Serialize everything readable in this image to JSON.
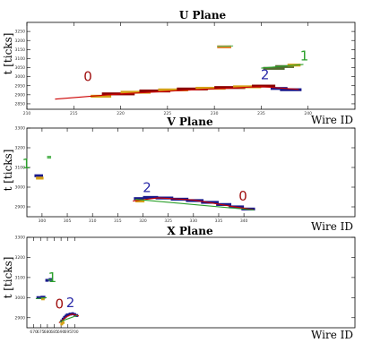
{
  "chart_data": [
    {
      "type": "scatter",
      "title": "U Plane",
      "xlabel": "Wire ID",
      "ylabel": "t [ticks]",
      "xlim": [
        210,
        245
      ],
      "ylim": [
        2820,
        3300
      ],
      "xticks": [
        210,
        215,
        220,
        225,
        230,
        235,
        240
      ],
      "yticks": [
        2850,
        2900,
        2950,
        3000,
        3050,
        3100,
        3150,
        3200,
        3250
      ],
      "grid": false,
      "hits": [
        {
          "x1": 216.8,
          "x2": 219.0,
          "y": 2892,
          "color": "#d4a017"
        },
        {
          "x1": 218.0,
          "x2": 221.5,
          "y": 2905,
          "color": "#8b0000"
        },
        {
          "x1": 220.0,
          "x2": 223.2,
          "y": 2914,
          "color": "#d4a017"
        },
        {
          "x1": 222.0,
          "x2": 225.3,
          "y": 2921,
          "color": "#8b0000"
        },
        {
          "x1": 224.0,
          "x2": 227.2,
          "y": 2927,
          "color": "#d4a017"
        },
        {
          "x1": 226.0,
          "x2": 229.3,
          "y": 2932,
          "color": "#8b0000"
        },
        {
          "x1": 228.0,
          "x2": 231.2,
          "y": 2936,
          "color": "#d4a017"
        },
        {
          "x1": 230.0,
          "x2": 233.3,
          "y": 2940,
          "color": "#8b0000"
        },
        {
          "x1": 232.0,
          "x2": 235.0,
          "y": 2944,
          "color": "#d4a017"
        },
        {
          "x1": 234.0,
          "x2": 236.5,
          "y": 2948,
          "color": "#8b0000"
        },
        {
          "x1": 236.0,
          "x2": 237.8,
          "y": 2935,
          "color": "#1a1a8c"
        },
        {
          "x1": 237.0,
          "x2": 239.3,
          "y": 2928,
          "color": "#1a1a8c"
        },
        {
          "x1": 235.2,
          "x2": 237.5,
          "y": 3046,
          "color": "#556b2f"
        },
        {
          "x1": 236.5,
          "x2": 238.5,
          "y": 3056,
          "color": "#556b2f"
        },
        {
          "x1": 237.8,
          "x2": 239.2,
          "y": 3064,
          "color": "#d4a017"
        },
        {
          "x1": 230.3,
          "x2": 231.8,
          "y": 3165,
          "color": "#e07b20"
        }
      ],
      "tracks": [
        {
          "points": [
            [
              213,
              2876
            ],
            [
              220,
              2905
            ],
            [
              228,
              2928
            ],
            [
              235,
              2945
            ],
            [
              239,
              2930
            ]
          ],
          "color": "#cc0000"
        },
        {
          "points": [
            [
              230.3,
              3168
            ],
            [
              232.0,
              3170
            ]
          ],
          "color": "#5cb85c"
        },
        {
          "points": [
            [
              235.0,
              3047
            ],
            [
              239.5,
              3068
            ]
          ],
          "color": "#2ca02c"
        }
      ],
      "labels": [
        {
          "text": "0",
          "x": 216.5,
          "y": 2975,
          "color": "#a01010"
        },
        {
          "text": "2",
          "x": 235.4,
          "y": 2985,
          "color": "#2a2aa8"
        },
        {
          "text": "1",
          "x": 239.6,
          "y": 3090,
          "color": "#2ca02c"
        }
      ]
    },
    {
      "type": "scatter",
      "title": "V Plane",
      "xlabel": "Wire ID",
      "ylabel": "t [ticks]",
      "xlim": [
        297,
        362
      ],
      "ylim": [
        2850,
        3300
      ],
      "xticks": [
        300,
        305,
        310,
        315,
        320,
        325,
        330,
        335,
        340
      ],
      "yticks": [
        2900,
        3000,
        3100,
        3200,
        3300
      ],
      "grid": false,
      "hits": [
        {
          "x1": 298.5,
          "x2": 300.2,
          "y": 3058,
          "color": "#1a1a8c"
        },
        {
          "x1": 298.8,
          "x2": 300.3,
          "y": 3046,
          "color": "#d4a017"
        },
        {
          "x1": 318.2,
          "x2": 320.2,
          "y": 2942,
          "color": "#1a1a8c"
        },
        {
          "x1": 320.0,
          "x2": 323.0,
          "y": 2948,
          "color": "#1a1a8c"
        },
        {
          "x1": 322.5,
          "x2": 326.0,
          "y": 2945,
          "color": "#1a1a8c"
        },
        {
          "x1": 325.5,
          "x2": 329.0,
          "y": 2939,
          "color": "#1a1a8c"
        },
        {
          "x1": 328.5,
          "x2": 332.0,
          "y": 2932,
          "color": "#1a1a8c"
        },
        {
          "x1": 331.5,
          "x2": 335.0,
          "y": 2923,
          "color": "#1a1a8c"
        },
        {
          "x1": 334.5,
          "x2": 337.5,
          "y": 2912,
          "color": "#1a1a8c"
        },
        {
          "x1": 337.0,
          "x2": 340.0,
          "y": 2900,
          "color": "#1a1a8c"
        },
        {
          "x1": 339.5,
          "x2": 342.2,
          "y": 2889,
          "color": "#1a1a8c"
        },
        {
          "x1": 318.5,
          "x2": 320.3,
          "y": 2930,
          "color": "#d4a017"
        },
        {
          "x1": 301.0,
          "x2": 301.8,
          "y": 3152,
          "color": "#5cb85c"
        }
      ],
      "tracks": [
        {
          "points": [
            [
              318,
              2930
            ],
            [
              323,
              2946
            ],
            [
              330,
              2935
            ],
            [
              337,
              2905
            ],
            [
              342,
              2885
            ]
          ],
          "color": "#cc0000"
        },
        {
          "points": [
            [
              318.5,
              2938
            ],
            [
              342,
              2884
            ]
          ],
          "color": "#2ca02c"
        }
      ],
      "labels": [
        {
          "text": "1",
          "x": 296.9,
          "y": 3095,
          "color": "#2ca02c"
        },
        {
          "text": "2",
          "x": 320.8,
          "y": 2975,
          "color": "#2a2aa8"
        },
        {
          "text": "0",
          "x": 339.8,
          "y": 2932,
          "color": "#a01010"
        }
      ]
    },
    {
      "type": "scatter",
      "title": "X Plane",
      "xlabel": "Wire ID",
      "ylabel": "t [ticks]",
      "xlim": [
        665,
        905
      ],
      "ylim": [
        2850,
        3300
      ],
      "xticks": [
        670,
        675,
        680,
        685,
        690,
        695,
        700
      ],
      "yticks": [
        2900,
        3000,
        3100,
        3200,
        3300
      ],
      "grid": false,
      "hits": [
        {
          "x1": 672.0,
          "x2": 675.5,
          "y": 3000,
          "color": "#1a1a8c"
        },
        {
          "x1": 675.0,
          "x2": 678.5,
          "y": 3002,
          "color": "#1a1a8c"
        },
        {
          "x1": 678.5,
          "x2": 681.0,
          "y": 3086,
          "color": "#1a1a8c"
        },
        {
          "x1": 681.0,
          "x2": 683.5,
          "y": 3090,
          "color": "#1a1a8c"
        },
        {
          "x1": 675.5,
          "x2": 678.0,
          "y": 2994,
          "color": "#d4a017"
        },
        {
          "x1": 689.5,
          "x2": 691.5,
          "y": 2884,
          "color": "#1a1a8c"
        },
        {
          "x1": 690.5,
          "x2": 692.5,
          "y": 2893,
          "color": "#1a1a8c"
        },
        {
          "x1": 691.5,
          "x2": 693.5,
          "y": 2902,
          "color": "#1a1a8c"
        },
        {
          "x1": 692.5,
          "x2": 694.5,
          "y": 2908,
          "color": "#1a1a8c"
        },
        {
          "x1": 693.5,
          "x2": 696.0,
          "y": 2914,
          "color": "#1a1a8c"
        },
        {
          "x1": 695.5,
          "x2": 698.0,
          "y": 2918,
          "color": "#1a1a8c"
        },
        {
          "x1": 697.5,
          "x2": 699.5,
          "y": 2920,
          "color": "#1a1a8c"
        },
        {
          "x1": 699.0,
          "x2": 701.0,
          "y": 2916,
          "color": "#1a1a8c"
        },
        {
          "x1": 700.5,
          "x2": 702.5,
          "y": 2911,
          "color": "#1a1a8c"
        },
        {
          "x1": 689.5,
          "x2": 691.5,
          "y": 2869,
          "color": "#d4a017"
        },
        {
          "x1": 690.5,
          "x2": 692.5,
          "y": 2876,
          "color": "#d4a017"
        }
      ],
      "tracks": [
        {
          "points": [
            [
              671.5,
              2995
            ],
            [
              679.5,
              3000
            ]
          ],
          "color": "#2ca02c"
        },
        {
          "points": [
            [
              680.5,
              3088
            ],
            [
              683.5,
              3090
            ]
          ],
          "color": "#2ca02c"
        },
        {
          "points": [
            [
              688.5,
              2875
            ],
            [
              694,
              2905
            ],
            [
              698,
              2918
            ],
            [
              703,
              2909
            ]
          ],
          "color": "#cc0000"
        },
        {
          "points": [
            [
              689,
              2880
            ],
            [
              702,
              2912
            ]
          ],
          "color": "#2ca02c"
        }
      ],
      "labels": [
        {
          "text": "1",
          "x": 683.6,
          "y": 3078,
          "color": "#2ca02c"
        },
        {
          "text": "0",
          "x": 688.8,
          "y": 2945,
          "color": "#a01010"
        },
        {
          "text": "2",
          "x": 696.8,
          "y": 2952,
          "color": "#2a2aa8"
        }
      ]
    }
  ]
}
